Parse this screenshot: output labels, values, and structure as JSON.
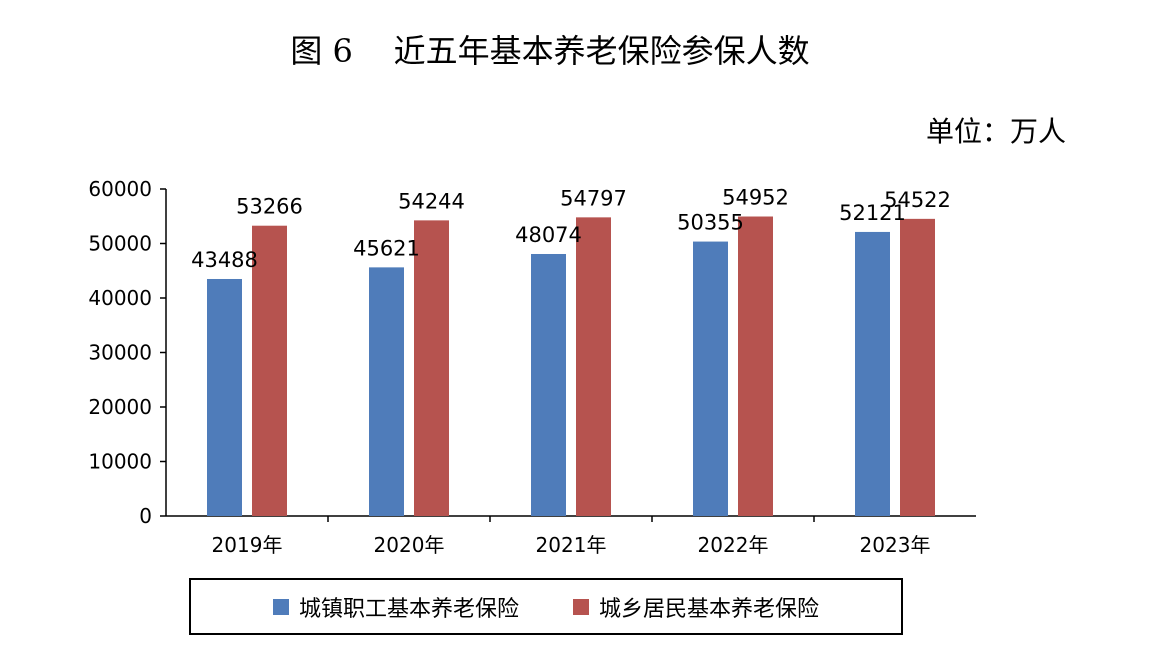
{
  "figure_title": "图 6    近五年基本养老保险参保人数",
  "unit": "单位：万人",
  "chart_data": {
    "type": "bar",
    "categories": [
      "2019年",
      "2020年",
      "2021年",
      "2022年",
      "2023年"
    ],
    "series": [
      {
        "name": "城镇职工基本养老保险",
        "values": [
          43488,
          45621,
          48074,
          50355,
          52121
        ],
        "color": "#4f7cba"
      },
      {
        "name": "城乡居民基本养老保险",
        "values": [
          53266,
          54244,
          54797,
          54952,
          54522
        ],
        "color": "#b6534f"
      }
    ],
    "ylim": [
      0,
      60000
    ],
    "yticks": [
      0,
      10000,
      20000,
      30000,
      40000,
      50000,
      60000
    ],
    "grid": false,
    "data_labels": true,
    "legend_position": "bottom"
  }
}
